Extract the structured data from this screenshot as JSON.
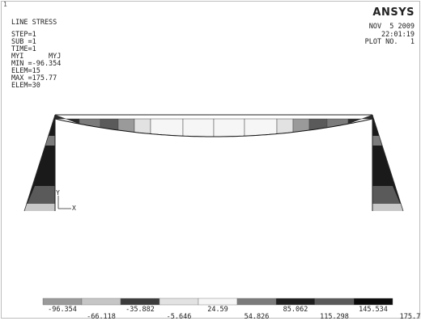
{
  "window_number": "1",
  "plot_title": "LINE STRESS",
  "step": "STEP=1",
  "substep": "SUB =1",
  "time": "TIME=1",
  "items": "MYI      MYJ",
  "min_value": "MIN =-96.354",
  "min_elem": "ELEM=15",
  "max_value": "MAX =175.77",
  "max_elem": "ELEM=30",
  "brand": "ANSYS",
  "date": "NOV  5 2009",
  "time_of_day": "22:01:19",
  "plot_no": "PLOT NO.   1",
  "axis_y": "Y",
  "axis_x": "X",
  "contour_colors": [
    "#9a9a9a",
    "#c6c6c6",
    "#3c3c3c",
    "#e2e2e2",
    "#f6f6f6",
    "#7b7b7b",
    "#1e1e1e",
    "#5a5a5a",
    "#0a0a0a"
  ],
  "legend_values": [
    "-96.354",
    "-66.118",
    "-35.882",
    "-5.646",
    "24.59",
    "54.826",
    "85.062",
    "115.298",
    "145.534",
    "175.77"
  ]
}
